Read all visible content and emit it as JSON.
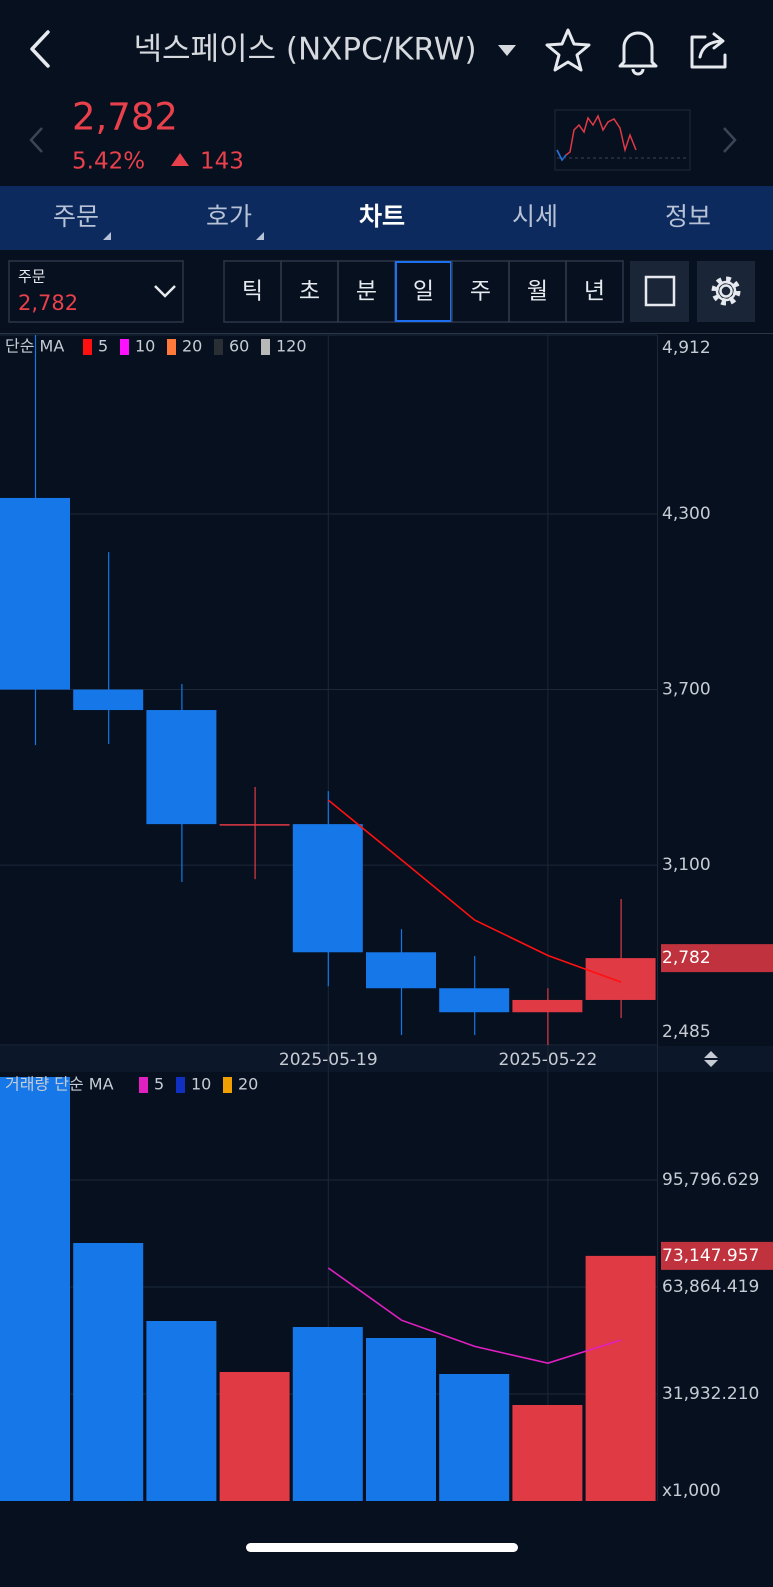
{
  "header": {
    "title": "넥스페이스 (NXPC/KRW)",
    "price": "2,782",
    "change_pct": "5.42%",
    "change": "143"
  },
  "tabs": [
    "주문",
    "호가",
    "차트",
    "시세",
    "정보"
  ],
  "active_tab": 2,
  "order_box": {
    "label": "주문",
    "value": "2,782"
  },
  "periods": [
    "틱",
    "초",
    "분",
    "일",
    "주",
    "월",
    "년"
  ],
  "active_period": 3,
  "chart_data": [
    {
      "type": "candlestick",
      "legend_title": "단순 MA",
      "categories": [
        null,
        null,
        null,
        null,
        "2025-05-19",
        null,
        null,
        "2025-05-22",
        null
      ],
      "open": [
        4355,
        3700,
        3630,
        3235,
        3240,
        2802,
        2679,
        2597,
        2639
      ],
      "high": [
        4912,
        4170,
        3719,
        3367,
        3353,
        2881,
        2789,
        2679,
        2984
      ],
      "low": [
        3510,
        3514,
        3042,
        3052,
        2686,
        2519,
        2519,
        2485,
        2577
      ],
      "close": [
        3700,
        3630,
        3240,
        3240,
        2802,
        2679,
        2597,
        2639,
        2782
      ],
      "up_color": "#e03a45",
      "down_color": "#1677e8",
      "series": [
        {
          "name": "5",
          "color": "#ff1010",
          "values": [
            null,
            null,
            null,
            null,
            3322,
            3118,
            2912,
            2791,
            2700
          ]
        },
        {
          "name": "10",
          "color": "#ff10ff"
        },
        {
          "name": "20",
          "color": "#ff7a3a"
        },
        {
          "name": "60",
          "color": "#2a2f36"
        },
        {
          "name": "120",
          "color": "#b8b8b8"
        }
      ],
      "ylim": [
        2485,
        4912
      ],
      "yticks": [
        {
          "value": 4912,
          "label": "4,912"
        },
        {
          "value": 4300,
          "label": "4,300"
        },
        {
          "value": 3700,
          "label": "3,700"
        },
        {
          "value": 3100,
          "label": "3,100"
        },
        {
          "value": 2485,
          "label": "2,485"
        }
      ],
      "last_label": {
        "value": 2782,
        "label": "2,782"
      },
      "grid": true
    },
    {
      "type": "bar",
      "legend_title": "거래량 단순 MA",
      "values": [
        126535,
        76997,
        53718,
        38498,
        51927,
        48644,
        37901,
        28650,
        73147.957
      ],
      "colors": [
        "#1677e8",
        "#1677e8",
        "#1677e8",
        "#e03a45",
        "#1677e8",
        "#1677e8",
        "#1677e8",
        "#e03a45",
        "#e03a45"
      ],
      "series": [
        {
          "name": "5",
          "color": "#e020c0",
          "values": [
            null,
            null,
            null,
            null,
            69535,
            53957,
            46138,
            41124,
            48054
          ]
        },
        {
          "name": "10",
          "color": "#1030c0"
        },
        {
          "name": "20",
          "color": "#f0a000"
        }
      ],
      "ylim": [
        0,
        127729
      ],
      "yticks": [
        {
          "value": 31932.21,
          "label": "31,932.210"
        },
        {
          "value": 63864.419,
          "label": "63,864.419"
        },
        {
          "value": 95796.629,
          "label": "95,796.629"
        }
      ],
      "unit_label": "x1,000",
      "last_label": {
        "value": 73147.957,
        "label": "73,147.957"
      },
      "grid": true
    }
  ]
}
